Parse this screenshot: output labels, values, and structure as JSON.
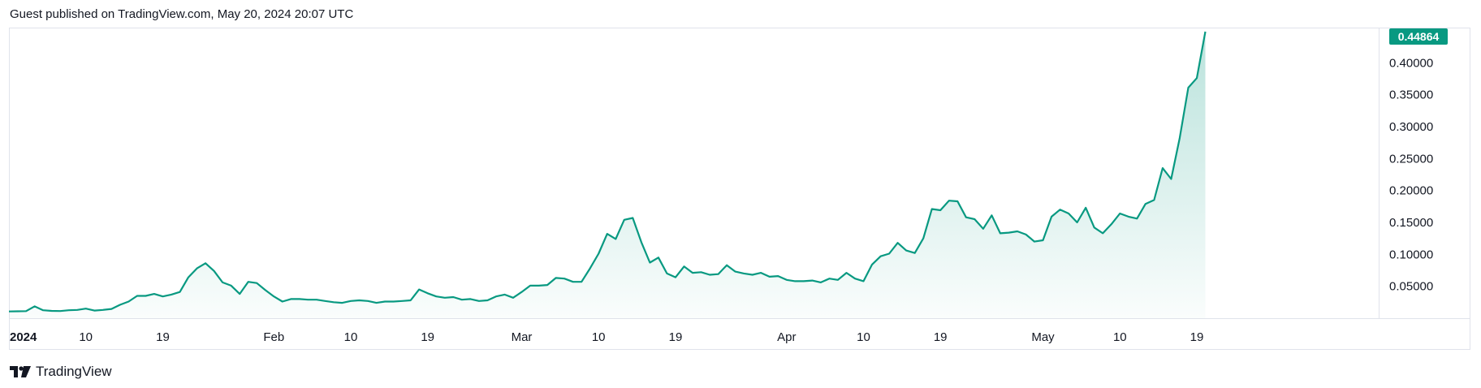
{
  "header": {
    "publisher_text": "Guest published on TradingView.com, May 20, 2024 20:07 UTC"
  },
  "footer": {
    "brand": "TradingView",
    "logo_icon": "tradingview-logo-icon"
  },
  "colors": {
    "line": "#089981",
    "badge": "#089981",
    "grid": "#e0e3eb",
    "text": "#131722"
  },
  "chart_data": {
    "type": "area",
    "last_price_label": "0.44864",
    "x_ticks": [
      {
        "label": "2024",
        "date": "2024-01-01",
        "bold": true
      },
      {
        "label": "10",
        "date": "2024-01-10"
      },
      {
        "label": "19",
        "date": "2024-01-19"
      },
      {
        "label": "Feb",
        "date": "2024-02-01"
      },
      {
        "label": "10",
        "date": "2024-02-10"
      },
      {
        "label": "19",
        "date": "2024-02-19"
      },
      {
        "label": "Mar",
        "date": "2024-03-01"
      },
      {
        "label": "10",
        "date": "2024-03-10"
      },
      {
        "label": "19",
        "date": "2024-03-19"
      },
      {
        "label": "Apr",
        "date": "2024-04-01"
      },
      {
        "label": "10",
        "date": "2024-04-10"
      },
      {
        "label": "19",
        "date": "2024-04-19"
      },
      {
        "label": "May",
        "date": "2024-05-01"
      },
      {
        "label": "10",
        "date": "2024-05-10"
      },
      {
        "label": "19",
        "date": "2024-05-19"
      }
    ],
    "y_ticks": [
      "0.40000",
      "0.35000",
      "0.30000",
      "0.25000",
      "0.20000",
      "0.15000",
      "0.10000",
      "0.05000"
    ],
    "y_range": [
      0.0,
      0.455
    ],
    "x_range": [
      "2024-01-01",
      "2024-05-19"
    ],
    "points": [
      [
        "2024-01-01",
        0.0105
      ],
      [
        "2024-01-02",
        0.0108
      ],
      [
        "2024-01-03",
        0.011
      ],
      [
        "2024-01-04",
        0.0185
      ],
      [
        "2024-01-05",
        0.0125
      ],
      [
        "2024-01-06",
        0.0115
      ],
      [
        "2024-01-07",
        0.0112
      ],
      [
        "2024-01-08",
        0.0125
      ],
      [
        "2024-01-09",
        0.013
      ],
      [
        "2024-01-10",
        0.015
      ],
      [
        "2024-01-11",
        0.012
      ],
      [
        "2024-01-12",
        0.013
      ],
      [
        "2024-01-13",
        0.0145
      ],
      [
        "2024-01-14",
        0.021
      ],
      [
        "2024-01-15",
        0.026
      ],
      [
        "2024-01-16",
        0.035
      ],
      [
        "2024-01-17",
        0.035
      ],
      [
        "2024-01-18",
        0.038
      ],
      [
        "2024-01-19",
        0.034
      ],
      [
        "2024-01-20",
        0.037
      ],
      [
        "2024-01-21",
        0.041
      ],
      [
        "2024-01-22",
        0.064
      ],
      [
        "2024-01-23",
        0.078
      ],
      [
        "2024-01-24",
        0.086
      ],
      [
        "2024-01-25",
        0.074
      ],
      [
        "2024-01-26",
        0.056
      ],
      [
        "2024-01-27",
        0.051
      ],
      [
        "2024-01-28",
        0.038
      ],
      [
        "2024-01-29",
        0.057
      ],
      [
        "2024-01-30",
        0.055
      ],
      [
        "2024-01-31",
        0.044
      ],
      [
        "2024-02-01",
        0.034
      ],
      [
        "2024-02-02",
        0.026
      ],
      [
        "2024-02-03",
        0.03
      ],
      [
        "2024-02-04",
        0.03
      ],
      [
        "2024-02-05",
        0.029
      ],
      [
        "2024-02-06",
        0.029
      ],
      [
        "2024-02-07",
        0.027
      ],
      [
        "2024-02-08",
        0.025
      ],
      [
        "2024-02-09",
        0.024
      ],
      [
        "2024-02-10",
        0.027
      ],
      [
        "2024-02-11",
        0.028
      ],
      [
        "2024-02-12",
        0.027
      ],
      [
        "2024-02-13",
        0.024
      ],
      [
        "2024-02-14",
        0.026
      ],
      [
        "2024-02-15",
        0.026
      ],
      [
        "2024-02-16",
        0.027
      ],
      [
        "2024-02-17",
        0.028
      ],
      [
        "2024-02-18",
        0.045
      ],
      [
        "2024-02-19",
        0.039
      ],
      [
        "2024-02-20",
        0.034
      ],
      [
        "2024-02-21",
        0.032
      ],
      [
        "2024-02-22",
        0.033
      ],
      [
        "2024-02-23",
        0.029
      ],
      [
        "2024-02-24",
        0.03
      ],
      [
        "2024-02-25",
        0.027
      ],
      [
        "2024-02-26",
        0.028
      ],
      [
        "2024-02-27",
        0.034
      ],
      [
        "2024-02-28",
        0.037
      ],
      [
        "2024-02-29",
        0.032
      ],
      [
        "2024-03-01",
        0.041
      ],
      [
        "2024-03-02",
        0.051
      ],
      [
        "2024-03-03",
        0.051
      ],
      [
        "2024-03-04",
        0.052
      ],
      [
        "2024-03-05",
        0.063
      ],
      [
        "2024-03-06",
        0.062
      ],
      [
        "2024-03-07",
        0.057
      ],
      [
        "2024-03-08",
        0.057
      ],
      [
        "2024-03-09",
        0.078
      ],
      [
        "2024-03-10",
        0.101
      ],
      [
        "2024-03-11",
        0.132
      ],
      [
        "2024-03-12",
        0.124
      ],
      [
        "2024-03-13",
        0.154
      ],
      [
        "2024-03-14",
        0.157
      ],
      [
        "2024-03-15",
        0.119
      ],
      [
        "2024-03-16",
        0.087
      ],
      [
        "2024-03-17",
        0.095
      ],
      [
        "2024-03-18",
        0.07
      ],
      [
        "2024-03-19",
        0.064
      ],
      [
        "2024-03-20",
        0.081
      ],
      [
        "2024-03-21",
        0.071
      ],
      [
        "2024-03-22",
        0.072
      ],
      [
        "2024-03-23",
        0.068
      ],
      [
        "2024-03-24",
        0.069
      ],
      [
        "2024-03-25",
        0.083
      ],
      [
        "2024-03-26",
        0.073
      ],
      [
        "2024-03-27",
        0.07
      ],
      [
        "2024-03-28",
        0.068
      ],
      [
        "2024-03-29",
        0.071
      ],
      [
        "2024-03-30",
        0.065
      ],
      [
        "2024-03-31",
        0.066
      ],
      [
        "2024-04-01",
        0.06
      ],
      [
        "2024-04-02",
        0.058
      ],
      [
        "2024-04-03",
        0.058
      ],
      [
        "2024-04-04",
        0.059
      ],
      [
        "2024-04-05",
        0.056
      ],
      [
        "2024-04-06",
        0.062
      ],
      [
        "2024-04-07",
        0.06
      ],
      [
        "2024-04-08",
        0.071
      ],
      [
        "2024-04-09",
        0.062
      ],
      [
        "2024-04-10",
        0.058
      ],
      [
        "2024-04-11",
        0.084
      ],
      [
        "2024-04-12",
        0.097
      ],
      [
        "2024-04-13",
        0.101
      ],
      [
        "2024-04-14",
        0.118
      ],
      [
        "2024-04-15",
        0.106
      ],
      [
        "2024-04-16",
        0.102
      ],
      [
        "2024-04-17",
        0.125
      ],
      [
        "2024-04-18",
        0.171
      ],
      [
        "2024-04-19",
        0.169
      ],
      [
        "2024-04-20",
        0.184
      ],
      [
        "2024-04-21",
        0.183
      ],
      [
        "2024-04-22",
        0.158
      ],
      [
        "2024-04-23",
        0.155
      ],
      [
        "2024-04-24",
        0.14
      ],
      [
        "2024-04-25",
        0.161
      ],
      [
        "2024-04-26",
        0.133
      ],
      [
        "2024-04-27",
        0.134
      ],
      [
        "2024-04-28",
        0.136
      ],
      [
        "2024-04-29",
        0.131
      ],
      [
        "2024-04-30",
        0.12
      ],
      [
        "2024-05-01",
        0.122
      ],
      [
        "2024-05-02",
        0.159
      ],
      [
        "2024-05-03",
        0.17
      ],
      [
        "2024-05-04",
        0.164
      ],
      [
        "2024-05-05",
        0.15
      ],
      [
        "2024-05-06",
        0.173
      ],
      [
        "2024-05-07",
        0.142
      ],
      [
        "2024-05-08",
        0.133
      ],
      [
        "2024-05-09",
        0.147
      ],
      [
        "2024-05-10",
        0.164
      ],
      [
        "2024-05-11",
        0.159
      ],
      [
        "2024-05-12",
        0.156
      ],
      [
        "2024-05-13",
        0.179
      ],
      [
        "2024-05-14",
        0.185
      ],
      [
        "2024-05-15",
        0.235
      ],
      [
        "2024-05-16",
        0.218
      ],
      [
        "2024-05-17",
        0.282
      ],
      [
        "2024-05-18",
        0.361
      ],
      [
        "2024-05-19",
        0.376
      ],
      [
        "2024-05-20",
        0.4486
      ]
    ]
  }
}
